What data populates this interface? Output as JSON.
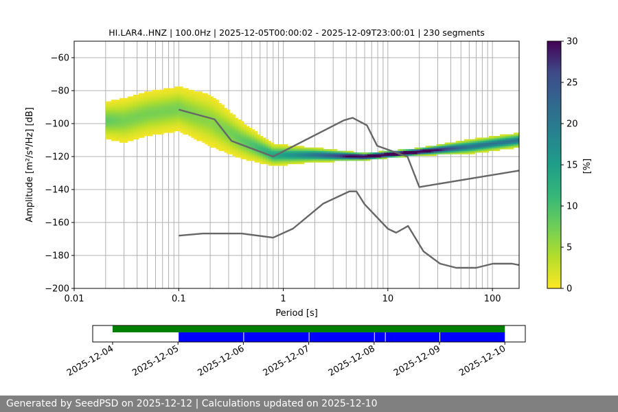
{
  "footer": {
    "text": "Generated by SeedPSD on 2025-12-12 | Calculations updated on 2025-12-10"
  },
  "colors": {
    "noise_model": "#666666",
    "coverage_available": "#008000",
    "coverage_used": "#0000ff",
    "grid": "#b0b0b0"
  },
  "chart_data": [
    {
      "type": "heatmap",
      "title": "HI.LAR4..HNZ | 100.0Hz | 2025-12-05T00:00:02 - 2025-12-09T23:00:01 | 230 segments",
      "xlabel": "Period [s]",
      "ylabel": "Amplitude [m²/s⁴/Hz] [dB]",
      "x_scale": "log",
      "xlim": [
        0.01,
        180
      ],
      "ylim": [
        -200,
        -50
      ],
      "x_ticks": [
        {
          "value": 0.01,
          "label": "0.01"
        },
        {
          "value": 0.1,
          "label": "0.1"
        },
        {
          "value": 1,
          "label": "1"
        },
        {
          "value": 10,
          "label": "10"
        },
        {
          "value": 100,
          "label": "100"
        }
      ],
      "y_ticks": [
        -60,
        -80,
        -100,
        -120,
        -140,
        -160,
        -180,
        -200
      ],
      "grid": true,
      "colorbar": {
        "label": "[%]",
        "min": 0,
        "max": 30,
        "ticks": [
          0,
          5,
          10,
          15,
          20,
          25,
          30
        ],
        "colormap": "viridis_r"
      },
      "noise_models": [
        {
          "points": [
            [
              0.1,
              -168
            ],
            [
              0.17,
              -166.7
            ],
            [
              0.4,
              -166.7
            ],
            [
              0.8,
              -169.2
            ],
            [
              1.24,
              -163.7
            ],
            [
              2.4,
              -148.6
            ],
            [
              4.3,
              -141.1
            ],
            [
              5.0,
              -141.1
            ],
            [
              6.0,
              -149.0
            ],
            [
              10.0,
              -163.8
            ],
            [
              12.0,
              -166.2
            ],
            [
              15.6,
              -162.1
            ],
            [
              21.9,
              -177.5
            ],
            [
              31.6,
              -185.0
            ],
            [
              45.0,
              -187.5
            ],
            [
              70.0,
              -187.5
            ],
            [
              101.0,
              -185.0
            ],
            [
              154.0,
              -185.0
            ],
            [
              180.0,
              -185.8
            ]
          ]
        },
        {
          "points": [
            [
              0.1,
              -91.5
            ],
            [
              0.22,
              -97.4
            ],
            [
              0.32,
              -110.5
            ],
            [
              0.8,
              -120.0
            ],
            [
              3.8,
              -98.0
            ],
            [
              4.6,
              -96.5
            ],
            [
              6.3,
              -101.0
            ],
            [
              7.9,
              -113.5
            ],
            [
              15.4,
              -120.0
            ],
            [
              20.0,
              -138.5
            ],
            [
              180.0,
              -128.5
            ]
          ]
        }
      ],
      "histogram": [
        {
          "period": 0.02,
          "mode": -98,
          "spread": 5
        },
        {
          "period": 0.03,
          "mode": -98,
          "spread": 6
        },
        {
          "period": 0.05,
          "mode": -94,
          "spread": 6
        },
        {
          "period": 0.1,
          "mode": -91,
          "spread": 6
        },
        {
          "period": 0.2,
          "mode": -98,
          "spread": 7
        },
        {
          "period": 0.4,
          "mode": -110,
          "spread": 5
        },
        {
          "period": 0.8,
          "mode": -119,
          "spread": 3
        },
        {
          "period": 2.0,
          "mode": -119,
          "spread": 2
        },
        {
          "period": 6.0,
          "mode": -120,
          "spread": 1
        },
        {
          "period": 20.0,
          "mode": -117,
          "spread": 1
        },
        {
          "period": 60.0,
          "mode": -114,
          "spread": 2
        },
        {
          "period": 180.0,
          "mode": -110,
          "spread": 2
        }
      ]
    },
    {
      "type": "timeline",
      "x_ticks": [
        "2025-12-04",
        "2025-12-05",
        "2025-12-06",
        "2025-12-07",
        "2025-12-08",
        "2025-12-09",
        "2025-12-10"
      ],
      "available_range": [
        "2025-12-04T00:00:00",
        "2025-12-10T00:00:00"
      ],
      "used_segments": [
        [
          "2025-12-05T00:00:00",
          "2025-12-06T00:00:00"
        ],
        [
          "2025-12-06T00:00:00",
          "2025-12-07T00:00:00"
        ],
        [
          "2025-12-07T00:00:00",
          "2025-12-08T00:00:00"
        ],
        [
          "2025-12-08T00:00:00",
          "2025-12-08T04:00:00"
        ],
        [
          "2025-12-08T04:00:00",
          "2025-12-09T00:00:00"
        ],
        [
          "2025-12-09T00:00:00",
          "2025-12-10T00:00:00"
        ]
      ]
    }
  ]
}
